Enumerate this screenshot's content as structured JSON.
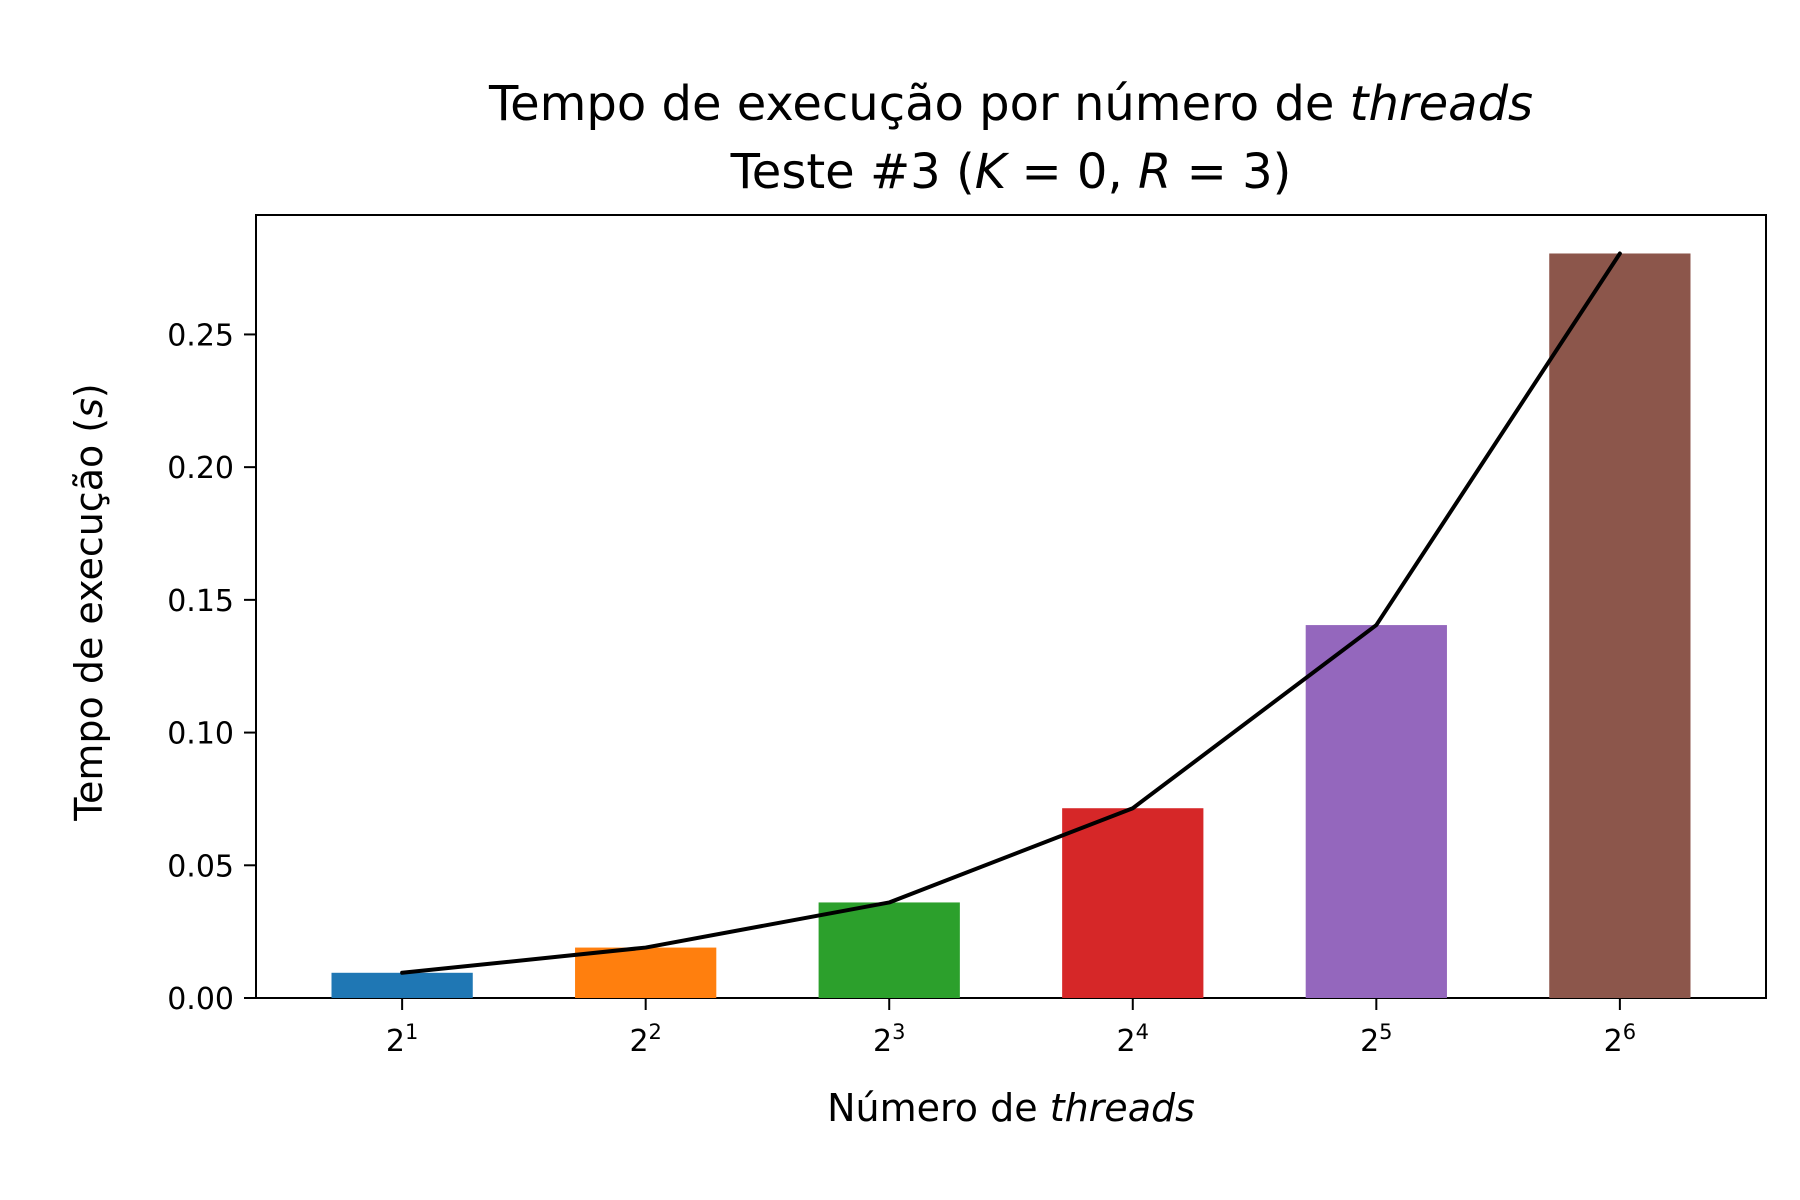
{
  "chart_data": {
    "type": "bar",
    "title": "Tempo de execução por número de threads",
    "subtitle": "Teste #3 (K = 0, R = 3)",
    "title_parts": {
      "prefix": "Tempo de execução por número de ",
      "italic": "threads"
    },
    "subtitle_parts": {
      "prefix": "Teste #3 (",
      "k_symbol": "K",
      "k_value": " = 0, ",
      "r_symbol": "R",
      "r_value": " = 3)"
    },
    "xlabel": "Número de threads",
    "xlabel_parts": {
      "prefix": "Número de ",
      "italic": "threads"
    },
    "ylabel": "Tempo de execução (s)",
    "ylabel_parts": {
      "prefix": "Tempo de execução (",
      "italic": "s",
      "suffix": ")"
    },
    "categories": [
      "2^1",
      "2^2",
      "2^3",
      "2^4",
      "2^5",
      "2^6"
    ],
    "category_base": "2",
    "category_exponents": [
      "1",
      "2",
      "3",
      "4",
      "5",
      "6"
    ],
    "values": [
      0.0095,
      0.019,
      0.036,
      0.0715,
      0.1405,
      0.2805
    ],
    "line_values": [
      0.0095,
      0.019,
      0.036,
      0.0715,
      0.1405,
      0.2805
    ],
    "colors": [
      "#1f77b4",
      "#ff7f0e",
      "#2ca02c",
      "#d62728",
      "#9467bd",
      "#8c564b"
    ],
    "line_color": "#000000",
    "yticks": [
      "0.00",
      "0.05",
      "0.10",
      "0.15",
      "0.20",
      "0.25"
    ],
    "ylim": [
      0,
      0.295
    ],
    "grid": false,
    "legend": "none"
  }
}
